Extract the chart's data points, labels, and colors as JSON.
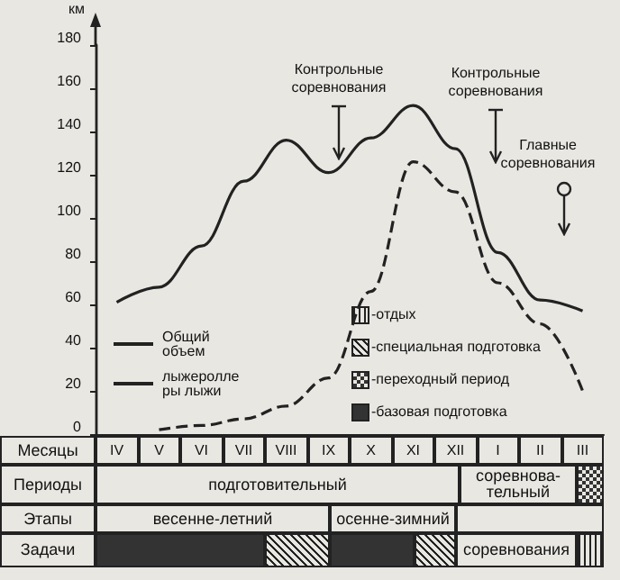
{
  "chart_data": {
    "type": "line",
    "ylabel": "км",
    "xlabel": "Месяцы",
    "categories": [
      "IV",
      "V",
      "VI",
      "VII",
      "VIII",
      "IX",
      "X",
      "XI",
      "XII",
      "I",
      "II",
      "III"
    ],
    "series": [
      {
        "name": "Общий объем",
        "color": "#222222",
        "line_style": "solid",
        "values": [
          61,
          68,
          87,
          117,
          136,
          121,
          137,
          152,
          132,
          84,
          62,
          57
        ]
      },
      {
        "name": "лыжероллеры лыжи",
        "color": "#222222",
        "line_style": "dashed",
        "values": [
          null,
          2,
          4,
          7,
          13,
          26,
          66,
          126,
          112,
          70,
          51,
          20
        ]
      }
    ],
    "ylim": [
      0,
      180
    ],
    "yticks": [
      0,
      20,
      40,
      60,
      80,
      100,
      120,
      140,
      160,
      180
    ],
    "grid": false,
    "legend": "left",
    "marker": "none",
    "annotations": [
      "Контрольные соревнования",
      "Контрольные соревнования",
      "Главные соревнования",
      "Периоды",
      "Этапы",
      "Задачи",
      "подготовительный",
      "соревнова-\nтельный",
      "весенне-летний",
      "осенне-зимний",
      "соревнования",
      "-отдых",
      "-специальная подготовка",
      "-переходный период",
      "-базовая подготовка"
    ]
  }
}
